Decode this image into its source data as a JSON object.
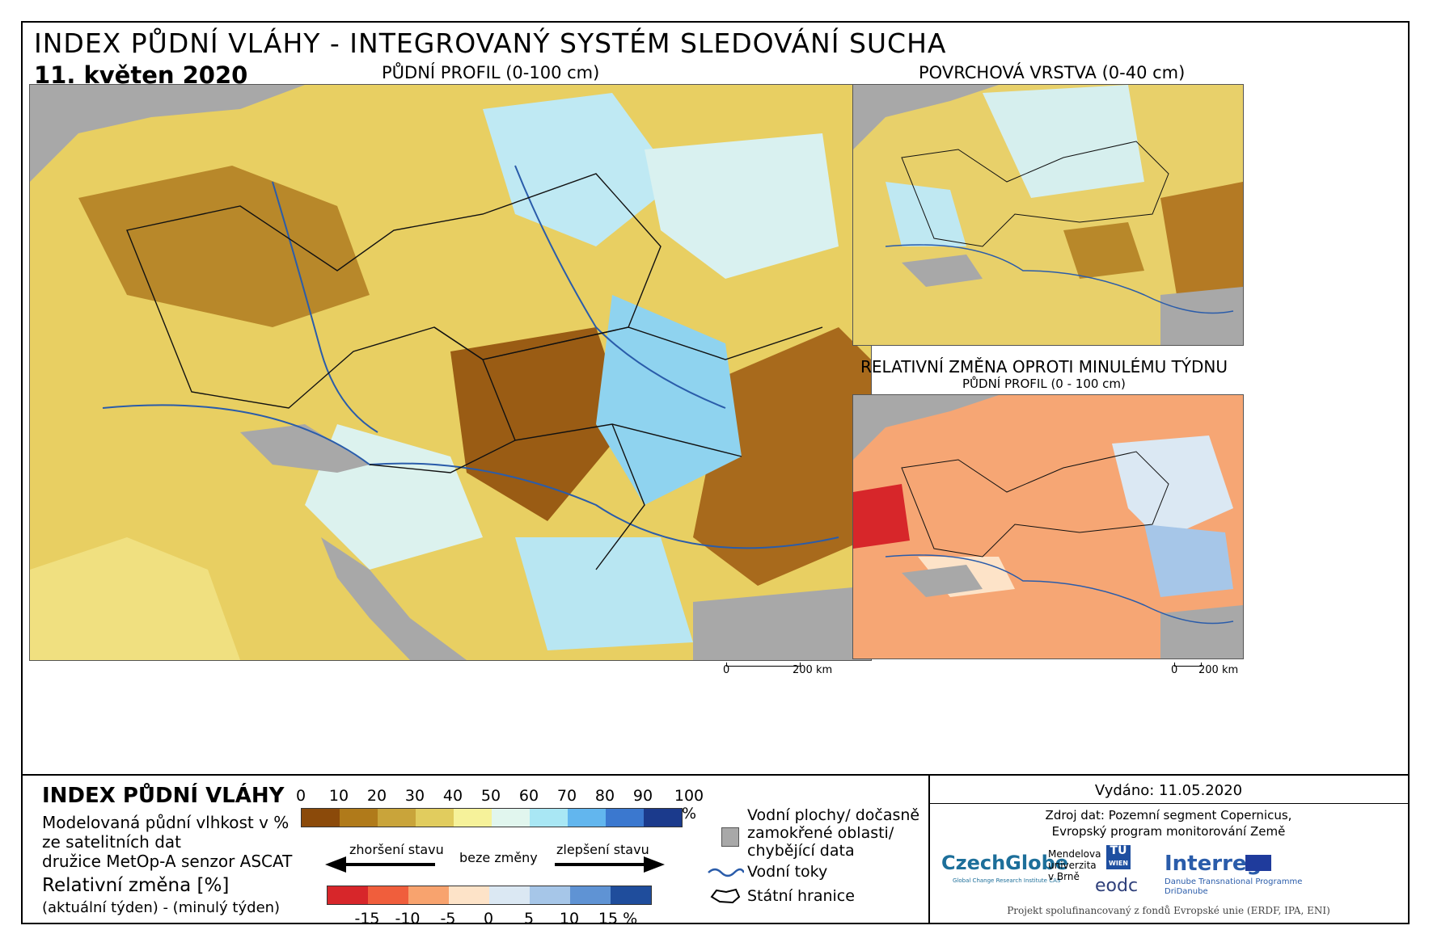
{
  "header": {
    "title": "INDEX PŮDNÍ VLÁHY - INTEGROVANÝ SYSTÉM SLEDOVÁNÍ SUCHA",
    "date": "11. květen 2020"
  },
  "maps": {
    "main_label": "PŮDNÍ PROFIL (0-100 cm)",
    "surface_label": "POVRCHOVÁ VRSTVA (0-40 cm)",
    "change_label": "RELATIVNÍ ZMĚNA OPROTI MINULÉMU TÝDNU",
    "change_sublabel": "PŮDNÍ PROFIL (0 - 100 cm)",
    "scale_main": [
      "0",
      "200 km"
    ],
    "scale_small": [
      "0",
      "200 km"
    ]
  },
  "legend": {
    "title": "INDEX PŮDNÍ VLÁHY",
    "desc": [
      "Modelovaná půdní vlhkost v %",
      "ze satelitních dat",
      "družice MetOp-A senzor ASCAT"
    ],
    "change_title": "Relativní změna [%]",
    "change_desc": "(aktuální týden) - (minulý týden)",
    "index_ticks": [
      "0",
      "10",
      "20",
      "30",
      "40",
      "50",
      "60",
      "70",
      "80",
      "90",
      "100 %"
    ],
    "index_colors": [
      "#8b4a0a",
      "#b07a1a",
      "#c9a43a",
      "#e1cc5e",
      "#f6f29a",
      "#e1f6ee",
      "#a9e7f4",
      "#62b6ee",
      "#3b78cf",
      "#1b3a8c"
    ],
    "change_ticks": [
      "-15",
      "-10",
      "-5",
      "0",
      "5",
      "10",
      "15 %"
    ],
    "change_colors": [
      "#d7262a",
      "#f05e3c",
      "#f8a36e",
      "#fde3c8",
      "#dbe8f3",
      "#a6c6e8",
      "#5f93d4",
      "#1f4d9c"
    ],
    "arrow_worse": "zhoršení stavu",
    "arrow_none": "beze změny",
    "arrow_better": "zlepšení stavu",
    "key_water": [
      "Vodní plochy/ dočasně",
      "zamokřené oblasti/",
      "chybějící data"
    ],
    "key_rivers": "Vodní toky",
    "key_borders": "Státní hranice"
  },
  "footer": {
    "issued": "Vydáno: 11.05.2020",
    "source": [
      "Zdroj dat: Pozemní segment Copernicus,",
      "Evropský program monitorování Země"
    ],
    "logo_czechglobe": "CzechGlobe",
    "logo_czechglobe_sub": "Global Change Research Institute CAS",
    "logo_mendel": [
      "Mendelova",
      "univerzita",
      "v Brně"
    ],
    "logo_tu": [
      "TU",
      "WIEN"
    ],
    "logo_eodc": "eodc",
    "logo_interreg": "Interreg",
    "logo_interreg_sub": [
      "Danube Transnational Programme",
      "DriDanube"
    ],
    "funding": "Projekt spolufinancovaný z fondů Evropské unie (ERDF, IPA, ENI)"
  }
}
